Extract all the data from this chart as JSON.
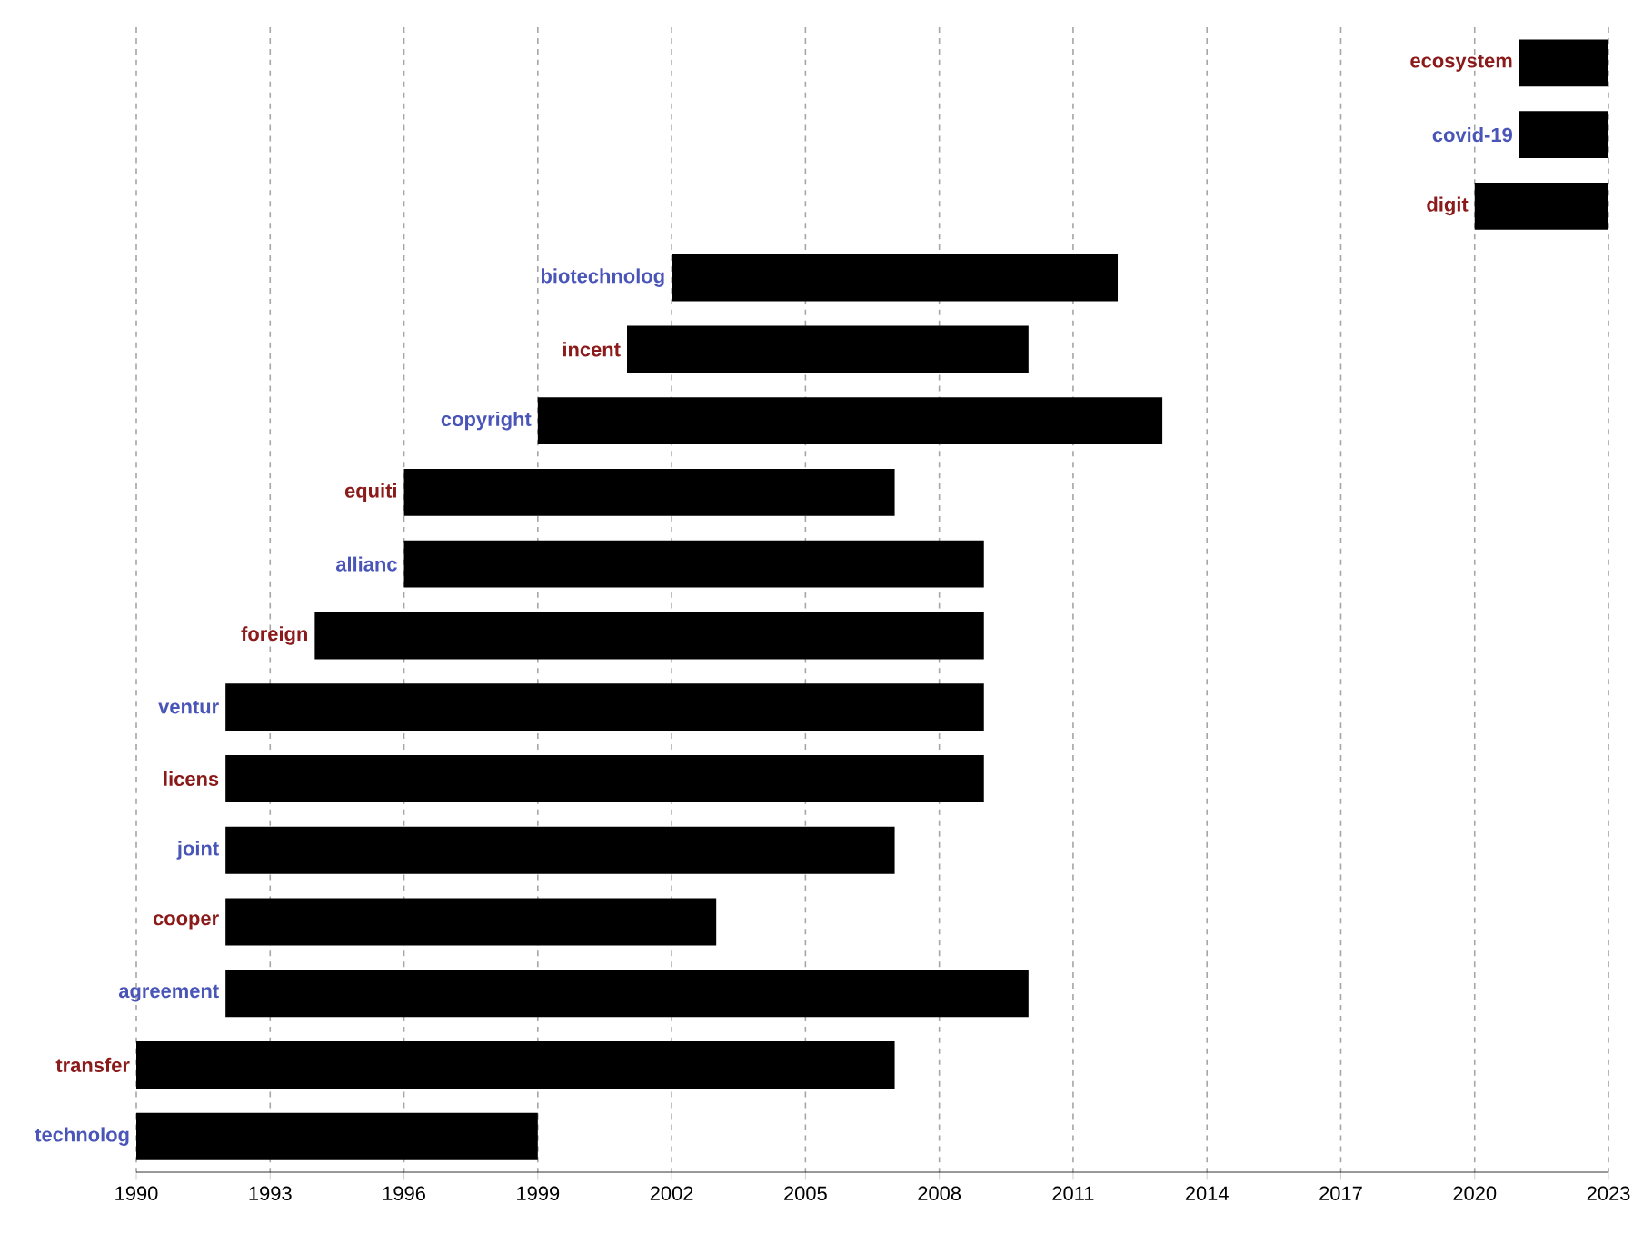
{
  "chart_data": {
    "type": "bar",
    "orientation": "horizontal",
    "categories": [
      "ecosystem",
      "covid-19",
      "digit",
      "biotechnolog",
      "incent",
      "copyright",
      "equiti",
      "allianc",
      "foreign",
      "ventur",
      "licens",
      "joint",
      "cooper",
      "agreement",
      "transfer",
      "technolog"
    ],
    "base": [
      2021,
      2021,
      2020,
      2002,
      2001,
      1999,
      1996,
      1996,
      1994,
      1992,
      1992,
      1992,
      1992,
      1992,
      1990,
      1990
    ],
    "values": [
      2,
      2,
      3,
      10,
      9,
      14,
      11,
      13,
      15,
      17,
      17,
      15,
      11,
      18,
      17,
      9
    ],
    "color": "#000000",
    "xlim": [
      1990,
      2023
    ],
    "xticks": [
      1990,
      1993,
      1996,
      1999,
      2002,
      2005,
      2008,
      2011,
      2014,
      2017,
      2020,
      2023
    ],
    "grid": "x"
  }
}
